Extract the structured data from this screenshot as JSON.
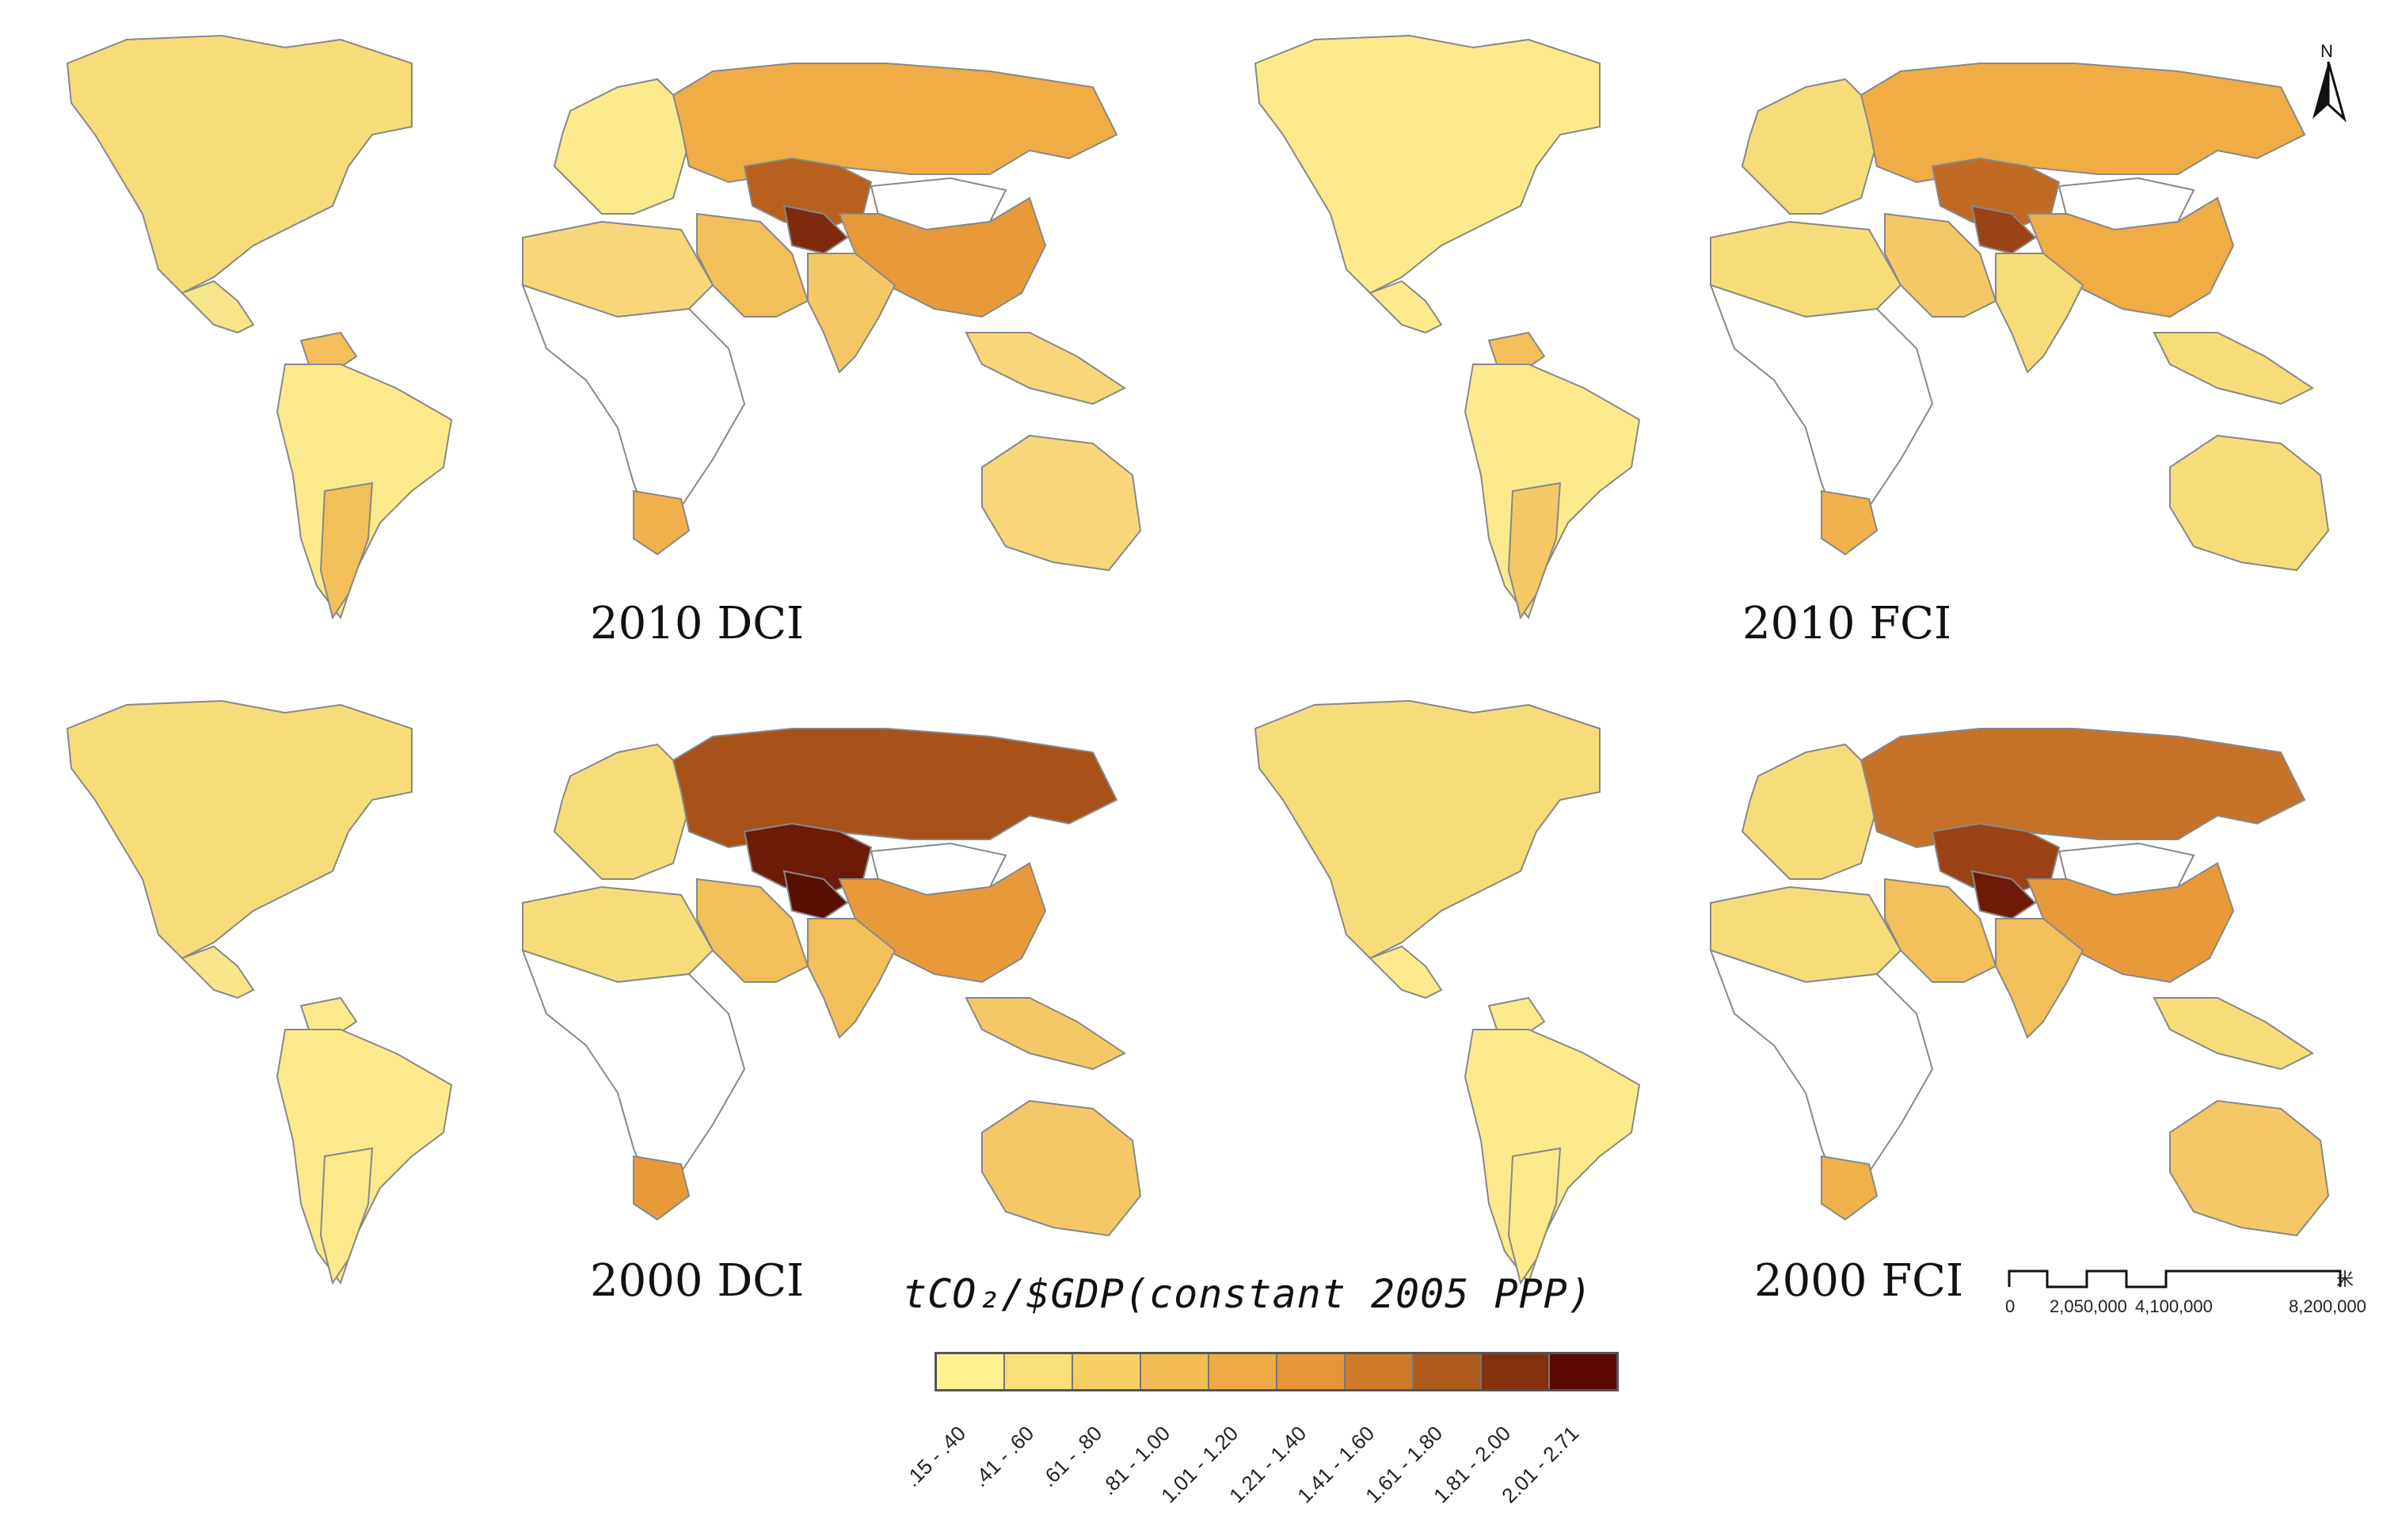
{
  "panels": [
    {
      "title": "2010 DCI",
      "fills": {
        "na": "#f7dd7a",
        "ca": "#f7e58a",
        "sa": "#fbea8c",
        "arg": "#f2bf5a",
        "ven": "#f2bf5a",
        "eu": "#fbea8c",
        "ru": "#f0ac45",
        "kaz": "#b8601e",
        "ca_asia": "#7e2a0e",
        "cn": "#e89a3a",
        "ind": "#f4c866",
        "me": "#f2bf5a",
        "naf": "#f7d77a",
        "af": "#ffffff",
        "za": "#f0b14c",
        "au": "#f7d77a",
        "sea": "#f7d77a",
        "mong": "#ffffff"
      }
    },
    {
      "title": "2010 FCI",
      "fills": {
        "na": "#fbea8c",
        "ca": "#fbea8c",
        "sa": "#fbea8c",
        "arg": "#f4c866",
        "ven": "#f2bf5a",
        "eu": "#f7dd7a",
        "ru": "#f0ac45",
        "kaz": "#c06a24",
        "ca_asia": "#9a4216",
        "cn": "#f0ac45",
        "ind": "#f7dd7a",
        "me": "#f4c866",
        "naf": "#f7dd7a",
        "af": "#ffffff",
        "za": "#f0b14c",
        "au": "#f7dd7a",
        "sea": "#f7dd7a",
        "mong": "#ffffff"
      }
    },
    {
      "title": "2000 DCI",
      "fills": {
        "na": "#f7dd7a",
        "ca": "#f7e58a",
        "sa": "#fbea8c",
        "arg": "#fbea8c",
        "ven": "#fbea8c",
        "eu": "#f7dd7a",
        "ru": "#a8521a",
        "kaz": "#6e1a08",
        "ca_asia": "#5a0f04",
        "cn": "#e89a3a",
        "ind": "#f2bf5a",
        "me": "#f2bf5a",
        "naf": "#f7dd7a",
        "af": "#ffffff",
        "za": "#e89a3a",
        "au": "#f4c866",
        "sea": "#f4c866",
        "mong": "#ffffff"
      }
    },
    {
      "title": "2000 FCI",
      "fills": {
        "na": "#f7dd7a",
        "ca": "#fbea8c",
        "sa": "#fbea8c",
        "arg": "#fbea8c",
        "ven": "#fbea8c",
        "eu": "#f7dd7a",
        "ru": "#c57228",
        "kaz": "#9a4216",
        "ca_asia": "#6e1a08",
        "cn": "#e89a3a",
        "ind": "#f2bf5a",
        "me": "#f2bf5a",
        "naf": "#f7dd7a",
        "af": "#ffffff",
        "za": "#f0b14c",
        "au": "#f4c866",
        "sea": "#f7dd7a",
        "mong": "#ffffff"
      }
    }
  ],
  "legend": {
    "title": "tCO₂/$GDP(constant 2005 PPP)",
    "classes": [
      {
        "label": ".15 - .40",
        "color": "#fdf08f"
      },
      {
        "label": ".41 - .60",
        "color": "#f9df79"
      },
      {
        "label": ".61 - .80",
        "color": "#f6cf66"
      },
      {
        "label": ".81 - 1.00",
        "color": "#f3bd55"
      },
      {
        "label": "1.01 - 1.20",
        "color": "#efab45"
      },
      {
        "label": "1.21 - 1.40",
        "color": "#e6953a"
      },
      {
        "label": "1.41 - 1.60",
        "color": "#cf7a2a"
      },
      {
        "label": "1.61 - 1.80",
        "color": "#ad5a1c"
      },
      {
        "label": "1.81 - 2.00",
        "color": "#83300d"
      },
      {
        "label": "2.01 - 2.71",
        "color": "#5d0a05"
      }
    ]
  },
  "scale": {
    "ticks": [
      "0",
      "2,050,000",
      "4,100,000",
      "8,200,000"
    ],
    "unit": "米"
  },
  "north": "N"
}
